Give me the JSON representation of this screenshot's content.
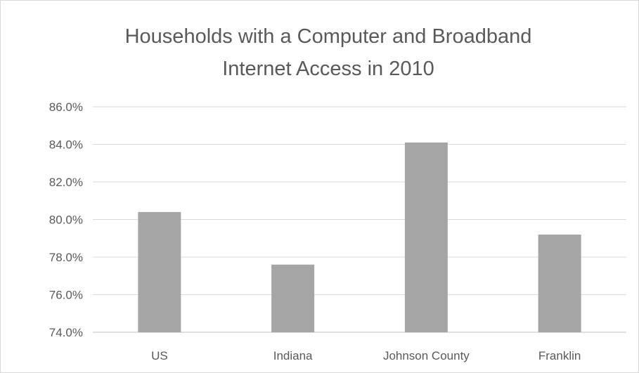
{
  "chart_data": {
    "type": "bar",
    "title_lines": [
      "Households with a Computer and Broadband",
      "Internet Access in 2010"
    ],
    "categories": [
      "US",
      "Indiana",
      "Johnson County",
      "Franklin"
    ],
    "values": [
      80.4,
      77.6,
      84.1,
      79.2
    ],
    "ylim": [
      74,
      86
    ],
    "yticks": [
      74,
      76,
      78,
      80,
      82,
      84,
      86
    ],
    "ytick_labels": [
      "74.0%",
      "76.0%",
      "78.0%",
      "80.0%",
      "82.0%",
      "84.0%",
      "86.0%"
    ],
    "grid": true,
    "legend": "none",
    "bar_color": "#a5a5a5"
  }
}
